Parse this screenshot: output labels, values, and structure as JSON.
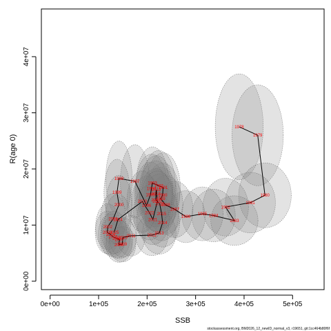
{
  "chart_data": {
    "type": "scatter",
    "xlabel": "SSB",
    "ylabel": "R(age 0)",
    "xlim": [
      -18000,
      565000
    ],
    "ylim": [
      -1500000,
      48500000
    ],
    "x_ticks": [
      0,
      100000,
      200000,
      300000,
      400000,
      500000
    ],
    "x_tick_labels": [
      "0e+00",
      "1e+05",
      "2e+05",
      "3e+05",
      "4e+05",
      "5e+05"
    ],
    "y_ticks": [
      0,
      10000000,
      20000000,
      30000000,
      40000000
    ],
    "y_tick_labels": [
      "0e+00",
      "1e+07",
      "2e+07",
      "3e+07",
      "4e+07"
    ],
    "footnote": "stockassessment.org, BM2026_12_newID_normal_v3, r19651, git:1cc464b80f6f",
    "colors": {
      "line": "#000000",
      "labels": "#ff0000",
      "ellipse_fill": "#808080",
      "ellipse_stroke": "#666666"
    },
    "years": [
      "1978",
      "1979",
      "1980",
      "1981",
      "1982",
      "1983",
      "1984",
      "1985",
      "1986",
      "1987",
      "1988",
      "1989",
      "1990",
      "1991",
      "1992",
      "1993",
      "1994",
      "1995",
      "1996",
      "1997",
      "1998",
      "1999",
      "2000",
      "2001",
      "2002",
      "2003",
      "2004",
      "2005",
      "2006",
      "2007",
      "2008",
      "2009",
      "2010",
      "2011",
      "2012",
      "2013",
      "2014",
      "2015",
      "2016",
      "2017",
      "2018",
      "2019",
      "2020",
      "2021",
      "2022",
      "2023",
      "2024",
      "2025"
    ],
    "ssb": [
      390000,
      428000,
      443000,
      413000,
      362000,
      380000,
      337000,
      314000,
      280000,
      257000,
      238000,
      228000,
      232000,
      233000,
      224000,
      211000,
      209000,
      207000,
      199000,
      175000,
      142000,
      138000,
      142000,
      130000,
      119000,
      118000,
      125000,
      130000,
      138000,
      143000,
      142000,
      149000,
      150000,
      167000,
      210000,
      225000,
      232000,
      230000,
      226000,
      218000,
      218000,
      219000,
      221000,
      212000,
      205000,
      190000,
      140000,
      132000
    ],
    "rec": [
      27500000,
      26000000,
      15300000,
      14000000,
      13200000,
      10800000,
      11700000,
      12000000,
      11500000,
      12800000,
      13600000,
      14700000,
      15300000,
      16700000,
      17000000,
      17500000,
      16500000,
      15400000,
      13500000,
      17800000,
      18300000,
      15800000,
      13600000,
      11100000,
      9700000,
      8700000,
      8300000,
      7900000,
      7600000,
      7400000,
      6500000,
      6600000,
      7800000,
      8100000,
      8200000,
      8600000,
      10400000,
      12000000,
      13800000,
      14500000,
      15600000,
      16300000,
      14200000,
      11000000,
      12200000,
      14200000,
      11000000,
      8700000
    ]
  }
}
